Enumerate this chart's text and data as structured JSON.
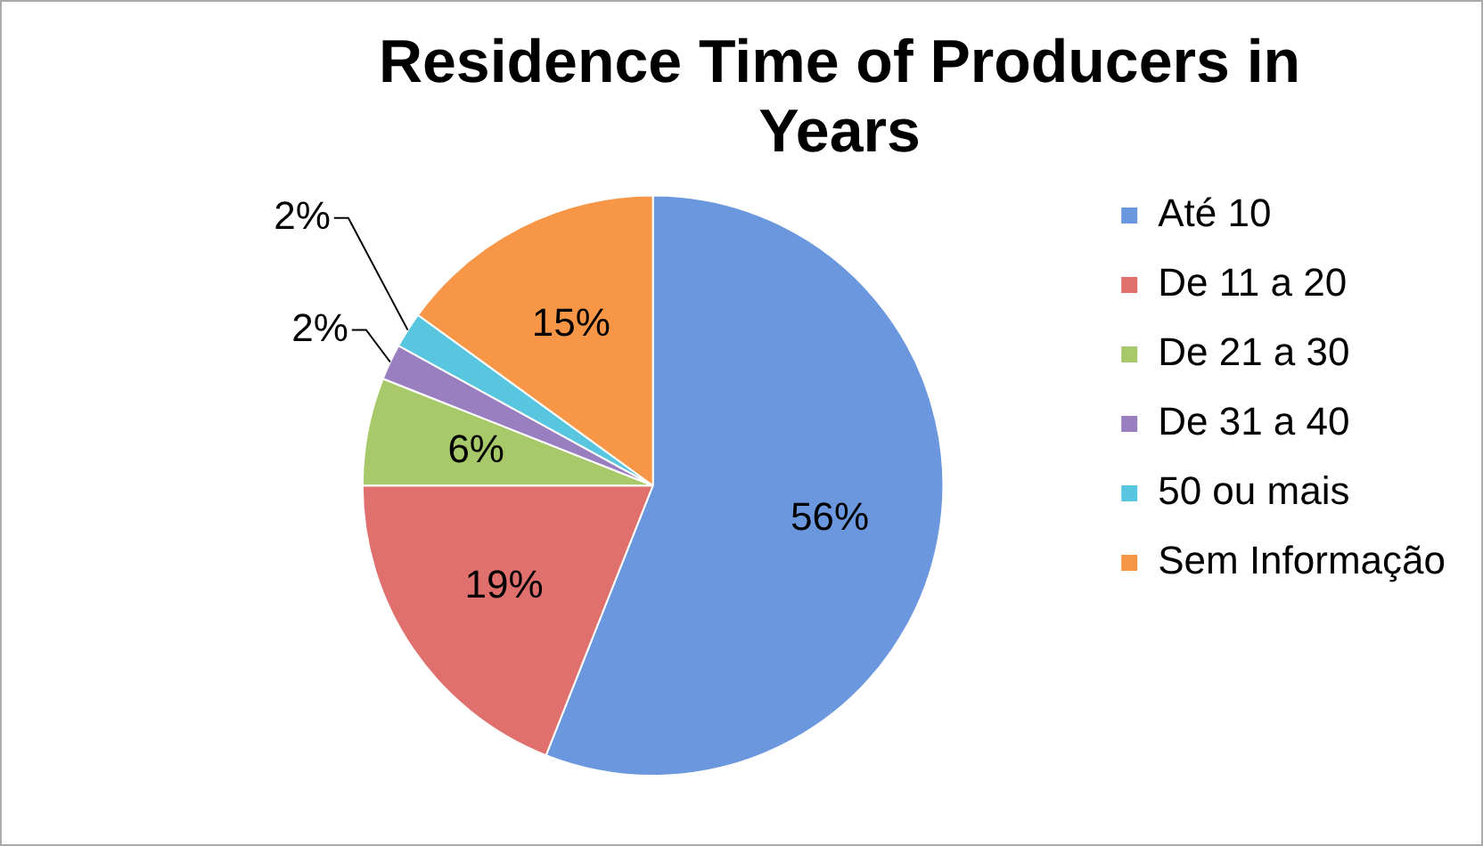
{
  "chart_data": {
    "type": "pie",
    "title": "Residence Time of Producers in Years",
    "categories": [
      "Até 10",
      "De 11 a 20",
      "De 21 a 30",
      "De 31 a 40",
      "50 ou mais",
      "Sem Informação"
    ],
    "values": [
      56,
      19,
      6,
      2,
      2,
      15
    ],
    "value_labels": [
      "56%",
      "19%",
      "6%",
      "2%",
      "2%",
      "15%"
    ],
    "colors": [
      "#6a97dd",
      "#e0706e",
      "#a8c96a",
      "#9a7fc0",
      "#59c6e0",
      "#f79646"
    ],
    "legend": "right"
  }
}
